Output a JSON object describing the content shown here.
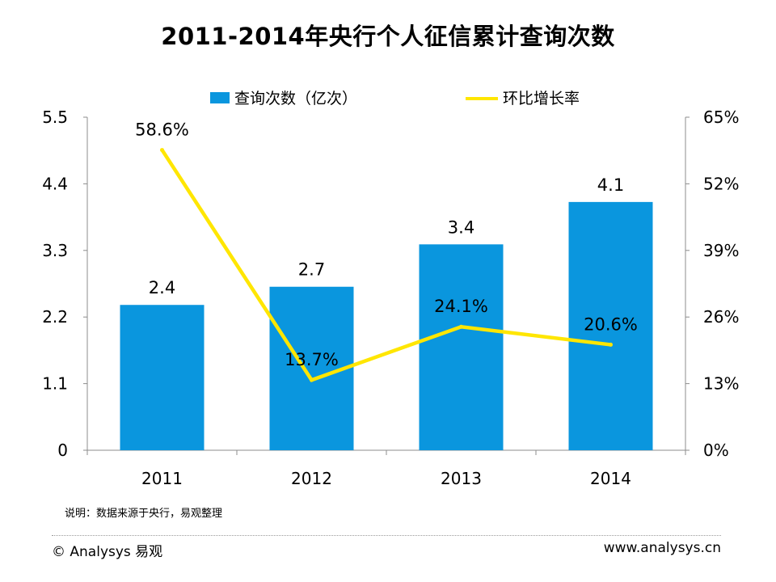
{
  "page": {
    "note": "说明：数据来源于央行，易观整理",
    "footer_left": "© Analysys 易观",
    "footer_right": "www.analysys.cn"
  },
  "chart_data": {
    "type": "bar",
    "title": "2011-2014年央行个人征信累计查询次数",
    "categories": [
      "2011",
      "2012",
      "2013",
      "2014"
    ],
    "series": [
      {
        "name": "查询次数（亿次）",
        "type": "bar",
        "axis": "left",
        "values": [
          2.4,
          2.7,
          3.4,
          4.1
        ],
        "labels": [
          "2.4",
          "2.7",
          "3.4",
          "4.1"
        ],
        "color": "#0a96de"
      },
      {
        "name": "环比增长率",
        "type": "line",
        "axis": "right",
        "values": [
          58.6,
          13.7,
          24.1,
          20.6
        ],
        "labels": [
          "58.6%",
          "13.7%",
          "24.1%",
          "20.6%"
        ],
        "color": "#ffe600"
      }
    ],
    "y_left": {
      "range": [
        0,
        5.5
      ],
      "ticks": [
        0,
        1.1,
        2.2,
        3.3,
        4.4,
        5.5
      ],
      "tick_labels": [
        "0",
        "1.1",
        "2.2",
        "3.3",
        "4.4",
        "5.5"
      ]
    },
    "y_right": {
      "range": [
        0,
        65
      ],
      "ticks": [
        0,
        13,
        26,
        39,
        52,
        65
      ],
      "tick_labels": [
        "0%",
        "13%",
        "26%",
        "39%",
        "52%",
        "65%"
      ]
    },
    "legend_position": "top-center",
    "grid": false
  }
}
